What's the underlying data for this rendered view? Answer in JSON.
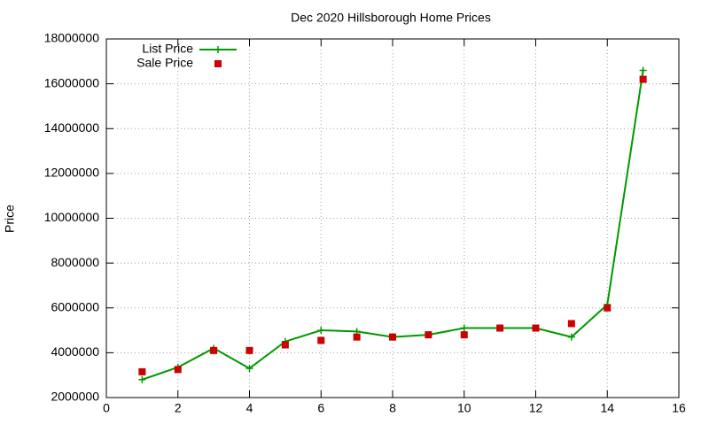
{
  "chart_data": {
    "type": "line",
    "title": "Dec 2020 Hillsborough Home Prices",
    "ylabel": "Price",
    "x": [
      1,
      2,
      3,
      4,
      5,
      6,
      7,
      8,
      9,
      10,
      11,
      12,
      13,
      14,
      15
    ],
    "series": [
      {
        "name": "List Price",
        "color": "#009900",
        "style": "linespoints",
        "values": [
          2800000,
          3350000,
          4200000,
          3300000,
          4500000,
          5000000,
          4950000,
          4700000,
          4800000,
          5100000,
          5100000,
          5100000,
          4700000,
          6150000,
          16600000
        ]
      },
      {
        "name": "Sale Price",
        "color": "#cc0000",
        "style": "points",
        "values": [
          3150000,
          3250000,
          4100000,
          4100000,
          4350000,
          4550000,
          4700000,
          4700000,
          4800000,
          4800000,
          5100000,
          5100000,
          5300000,
          6000000,
          16200000
        ]
      }
    ],
    "xlim": [
      0,
      16
    ],
    "xticks": [
      0,
      2,
      4,
      6,
      8,
      10,
      12,
      14,
      16
    ],
    "ylim": [
      2000000,
      18000000
    ],
    "yticks": [
      2000000,
      4000000,
      6000000,
      8000000,
      10000000,
      12000000,
      14000000,
      16000000,
      18000000
    ],
    "grid": true,
    "legend": "top-left"
  }
}
